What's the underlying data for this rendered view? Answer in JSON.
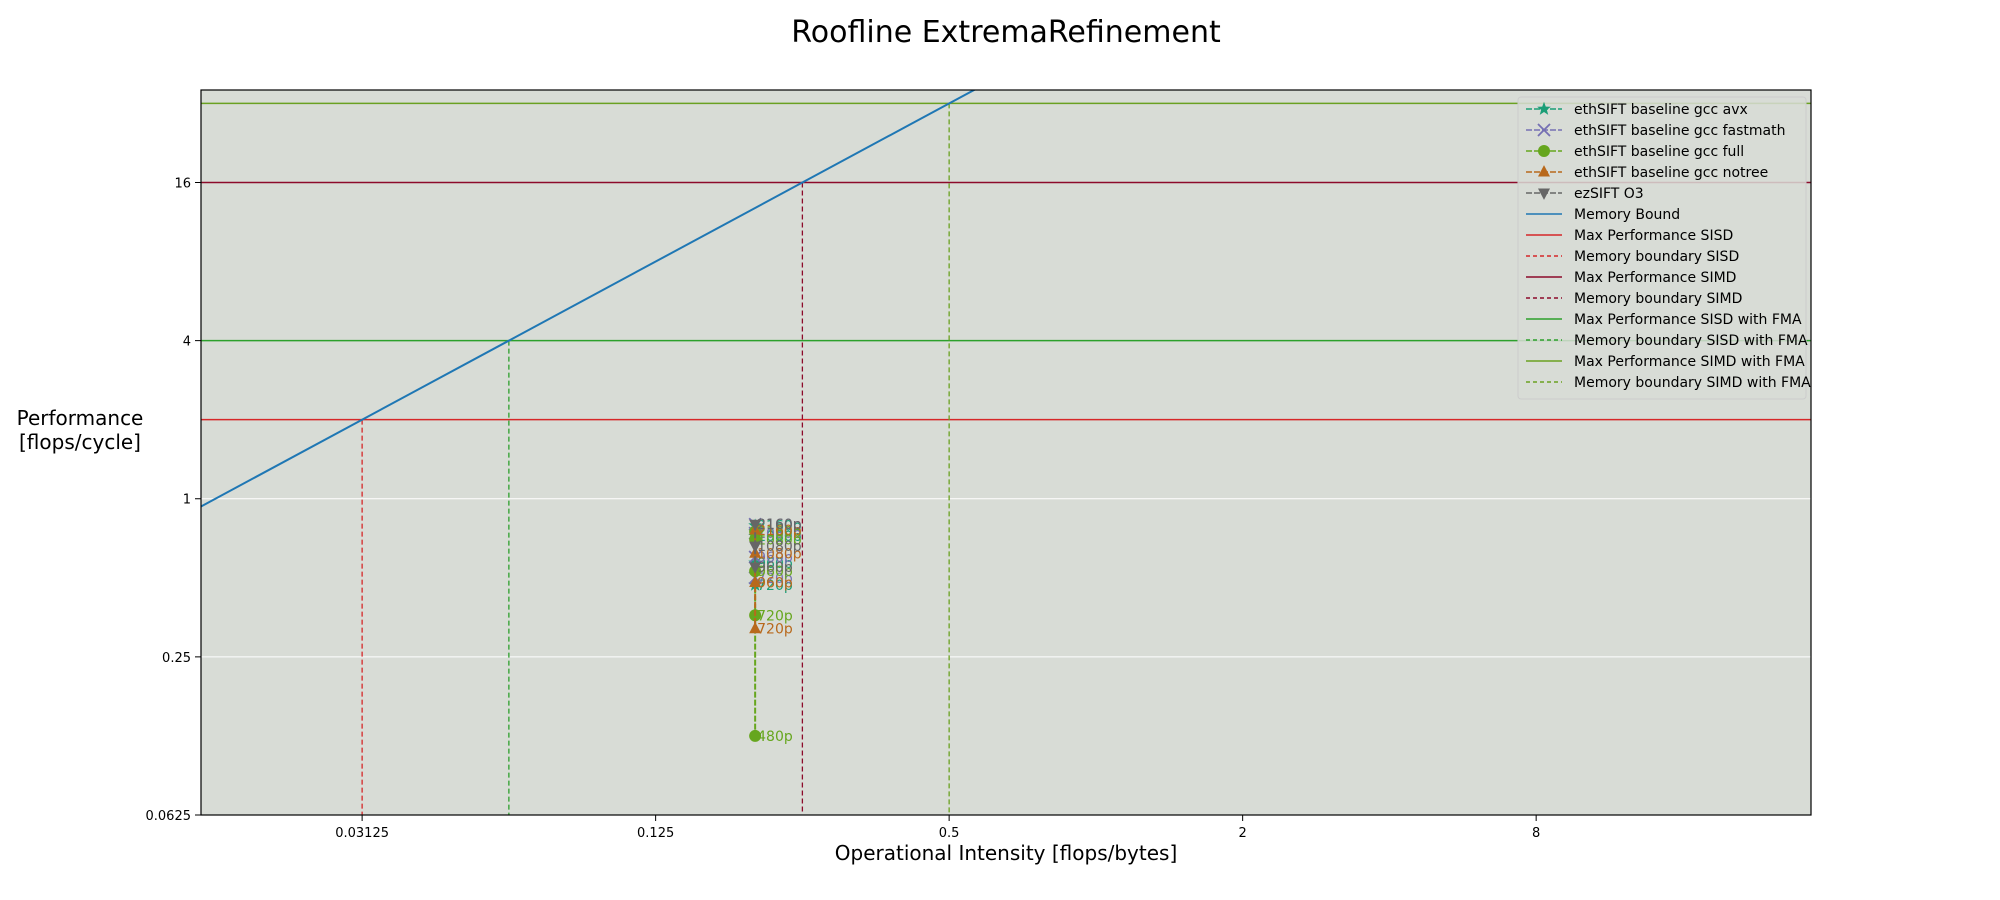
{
  "chart_data": {
    "type": "line",
    "title": "Roofline ExtremaRefinement",
    "xlabel": "Operational Intensity [flops/bytes]",
    "ylabel_lines": [
      "Performance",
      "[flops/cycle]"
    ],
    "xscale": "log2",
    "yscale": "log2",
    "xlim": [
      0.0146,
      29.3
    ],
    "ylim": [
      0.0625,
      36
    ],
    "x_ticks": [
      {
        "value": 0.03125,
        "label": "0.03125"
      },
      {
        "value": 0.125,
        "label": "0.125"
      },
      {
        "value": 0.5,
        "label": "0.5"
      },
      {
        "value": 2,
        "label": "2"
      },
      {
        "value": 8,
        "label": "8"
      }
    ],
    "y_ticks": [
      {
        "value": 0.0625,
        "label": "0.0625"
      },
      {
        "value": 0.25,
        "label": "0.25"
      },
      {
        "value": 1,
        "label": "1"
      },
      {
        "value": 4,
        "label": "4"
      },
      {
        "value": 16,
        "label": "16"
      }
    ],
    "grid": "y-major",
    "background": "#d8dcd6",
    "legend_position": "top-right",
    "memory_bound": {
      "name": "Memory Bound",
      "slope": 64,
      "color": "#1f77b4"
    },
    "ceilings": [
      {
        "name": "Max Performance SISD",
        "y": 2,
        "color": "#d62728",
        "boundary_name": "Memory boundary SISD",
        "boundary_x": 0.03125,
        "boundary_color": "#d62728"
      },
      {
        "name": "Max Performance SIMD",
        "y": 16,
        "color": "#8c0a2a",
        "boundary_name": "Memory boundary SIMD",
        "boundary_x": 0.25,
        "boundary_color": "#8c0a2a"
      },
      {
        "name": "Max Performance SISD with FMA",
        "y": 4,
        "color": "#2ca02c",
        "boundary_name": "Memory boundary SISD with FMA",
        "boundary_x": 0.0625,
        "boundary_color": "#2ca02c"
      },
      {
        "name": "Max Performance SIMD with FMA",
        "y": 32,
        "color": "#6aa121",
        "boundary_name": "Memory boundary SIMD with FMA",
        "boundary_x": 0.5,
        "boundary_color": "#6aa121"
      }
    ],
    "series": [
      {
        "name": "ethSIFT baseline gcc avx",
        "marker": "star",
        "color": "#1b9e77",
        "points": [
          {
            "x": 0.2,
            "y": 0.79,
            "label": "2160p"
          },
          {
            "x": 0.2,
            "y": 0.72,
            "label": "1080p"
          },
          {
            "x": 0.2,
            "y": 0.57,
            "label": "960p"
          },
          {
            "x": 0.2,
            "y": 0.47,
            "label": "720p"
          }
        ]
      },
      {
        "name": "ethSIFT baseline gcc fastmath",
        "marker": "x",
        "color": "#7570b3",
        "points": [
          {
            "x": 0.2,
            "y": 0.8,
            "label": "2160p"
          },
          {
            "x": 0.2,
            "y": 0.74,
            "label": "1080p"
          },
          {
            "x": 0.2,
            "y": 0.6,
            "label": "960p"
          },
          {
            "x": 0.2,
            "y": 0.5,
            "label": "720p"
          }
        ]
      },
      {
        "name": "ethSIFT baseline gcc full",
        "marker": "circle",
        "color": "#66a61e",
        "points": [
          {
            "x": 0.2,
            "y": 0.75,
            "label": "2160p"
          },
          {
            "x": 0.2,
            "y": 0.7,
            "label": "1080p"
          },
          {
            "x": 0.2,
            "y": 0.53,
            "label": "960p"
          },
          {
            "x": 0.2,
            "y": 0.36,
            "label": "720p"
          },
          {
            "x": 0.2,
            "y": 0.125,
            "label": "480p"
          }
        ]
      },
      {
        "name": "ethSIFT baseline gcc notree",
        "marker": "triangle-up",
        "color": "#b8691c",
        "points": [
          {
            "x": 0.2,
            "y": 0.76,
            "label": "2160p"
          },
          {
            "x": 0.2,
            "y": 0.62,
            "label": "1080p"
          },
          {
            "x": 0.2,
            "y": 0.48,
            "label": "960p"
          },
          {
            "x": 0.2,
            "y": 0.32,
            "label": "720p"
          }
        ]
      },
      {
        "name": "ezSIFT O3",
        "marker": "triangle-down",
        "color": "#666666",
        "points": [
          {
            "x": 0.2,
            "y": 0.8,
            "label": "2160p"
          },
          {
            "x": 0.2,
            "y": 0.66,
            "label": "1080p"
          },
          {
            "x": 0.2,
            "y": 0.55,
            "label": "960p"
          }
        ]
      }
    ]
  }
}
